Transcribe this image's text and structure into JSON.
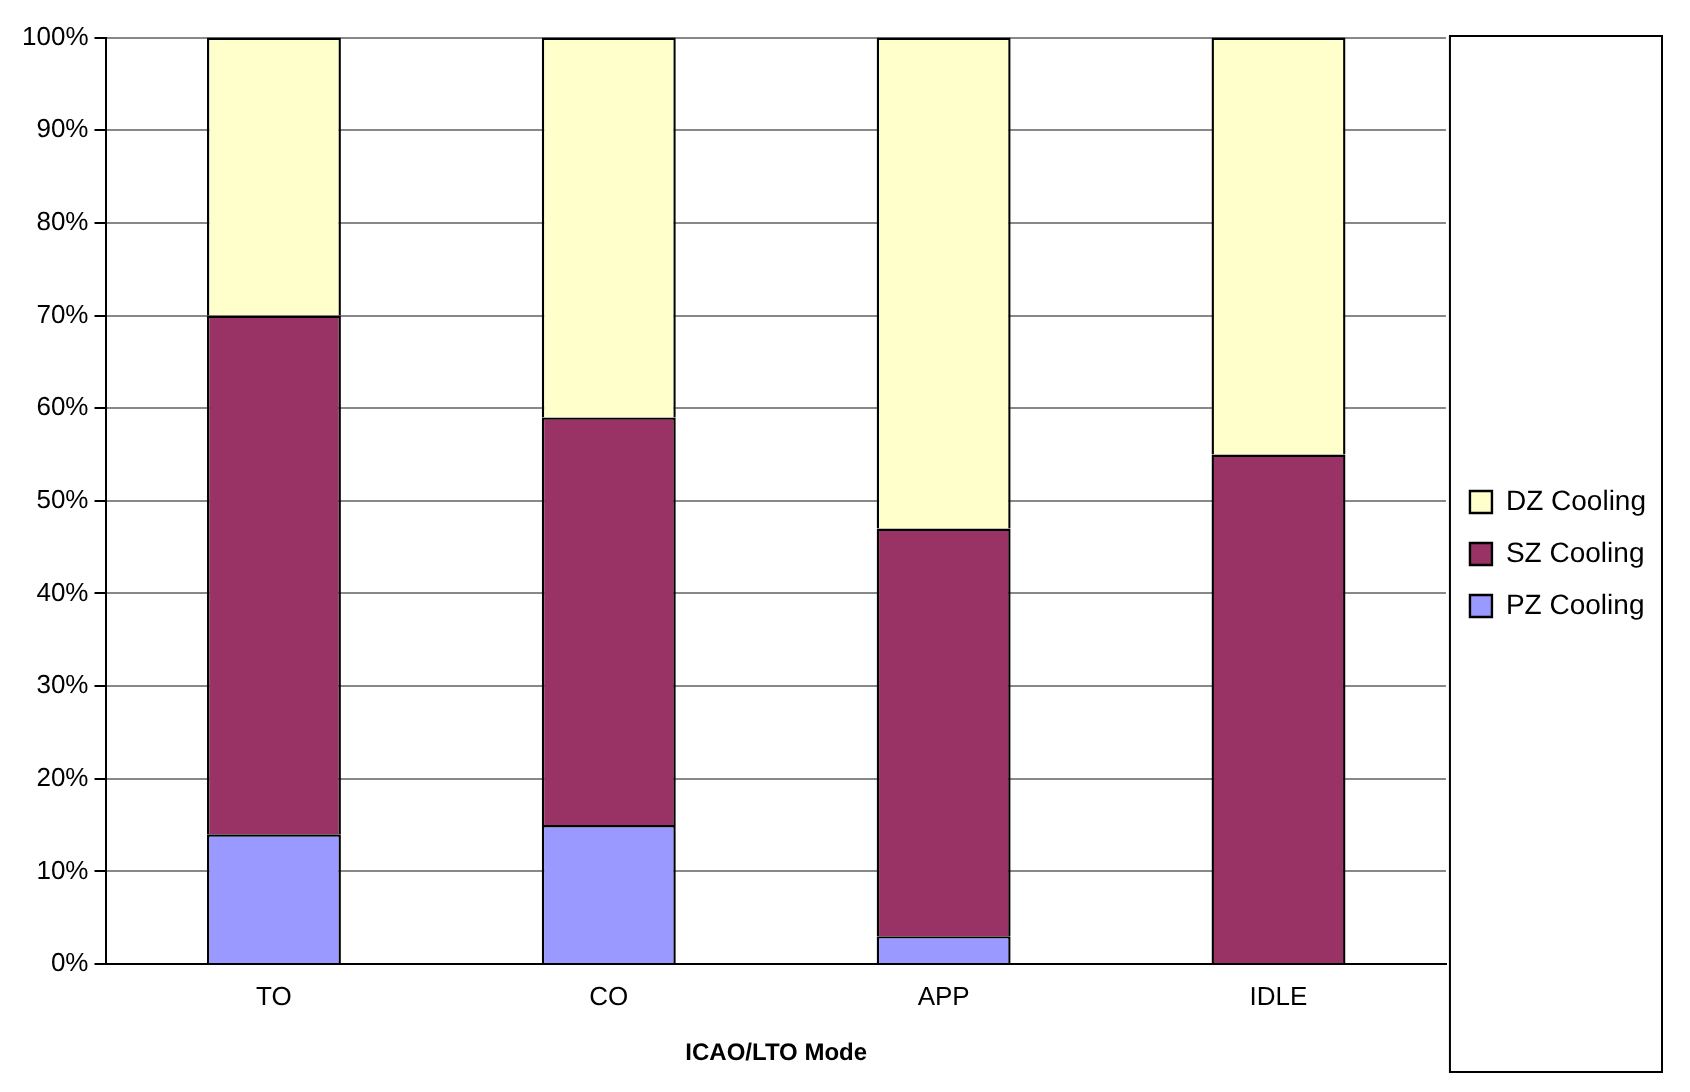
{
  "chart_data": {
    "type": "bar",
    "xlabel": "ICAO/LTO Mode",
    "categories": [
      "TO",
      "CO",
      "APP",
      "IDLE"
    ],
    "series": [
      {
        "name": "PZ Cooling",
        "color": "#9999ff",
        "values": [
          14,
          15,
          3,
          0
        ]
      },
      {
        "name": "SZ Cooling",
        "color": "#993366",
        "values": [
          56,
          44,
          44,
          55
        ]
      },
      {
        "name": "DZ Cooling",
        "color": "#ffffcc",
        "values": [
          30,
          41,
          53,
          45
        ]
      }
    ],
    "stacked": true,
    "ylim": [
      0,
      100
    ],
    "yticks": [
      {
        "value": 0,
        "label": "0%"
      },
      {
        "value": 10,
        "label": "10%"
      },
      {
        "value": 20,
        "label": "20%"
      },
      {
        "value": 30,
        "label": "30%"
      },
      {
        "value": 40,
        "label": "40%"
      },
      {
        "value": 50,
        "label": "50%"
      },
      {
        "value": 60,
        "label": "60%"
      },
      {
        "value": 70,
        "label": "70%"
      },
      {
        "value": 80,
        "label": "80%"
      },
      {
        "value": 90,
        "label": "90%"
      },
      {
        "value": 100,
        "label": "100%"
      }
    ],
    "grid": "y",
    "legend": "right"
  }
}
